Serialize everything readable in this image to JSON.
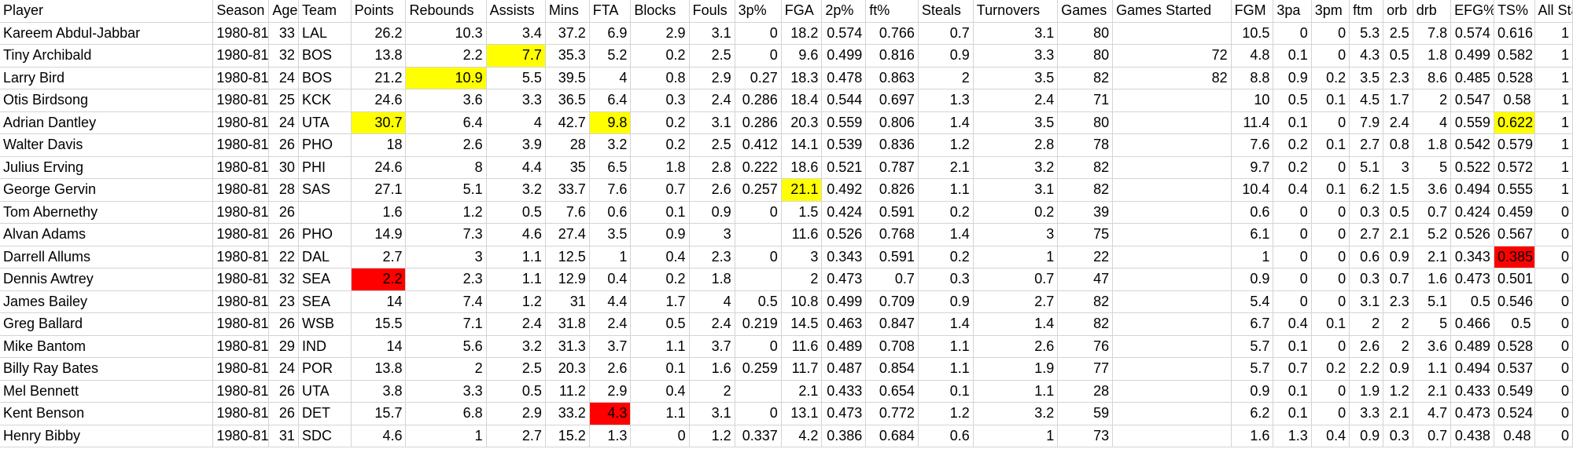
{
  "sheet": {
    "columns": [
      "Player",
      "Season",
      "Age",
      "Team",
      "Points",
      "Rebounds",
      "Assists",
      "Mins",
      "FTA",
      "Blocks",
      "Fouls",
      "3p%",
      "FGA",
      "2p%",
      "ft%",
      "Steals",
      "Turnovers",
      "Games",
      "Games Started",
      "FGM",
      "3pa",
      "3pm",
      "ftm",
      "orb",
      "drb",
      "EFG%",
      "TS%",
      "All Star"
    ],
    "text_columns": [
      0,
      1,
      3
    ],
    "highlight_colors": {
      "yellow": "#ffff00",
      "red": "#ff0000"
    },
    "rows": [
      {
        "cells": [
          "Kareem Abdul-Jabbar",
          "1980-81",
          "33",
          "LAL",
          "26.2",
          "10.3",
          "3.4",
          "37.2",
          "6.9",
          "2.9",
          "3.1",
          "0",
          "18.2",
          "0.574",
          "0.766",
          "0.7",
          "3.1",
          "80",
          "",
          "10.5",
          "0",
          "0",
          "5.3",
          "2.5",
          "7.8",
          "0.574",
          "0.616",
          "1"
        ],
        "highlights": {}
      },
      {
        "cells": [
          "Tiny Archibald",
          "1980-81",
          "32",
          "BOS",
          "13.8",
          "2.2",
          "7.7",
          "35.3",
          "5.2",
          "0.2",
          "2.5",
          "0",
          "9.6",
          "0.499",
          "0.816",
          "0.9",
          "3.3",
          "80",
          "72",
          "4.8",
          "0.1",
          "0",
          "4.3",
          "0.5",
          "1.8",
          "0.499",
          "0.582",
          "1"
        ],
        "highlights": {
          "6": "yellow"
        }
      },
      {
        "cells": [
          "Larry Bird",
          "1980-81",
          "24",
          "BOS",
          "21.2",
          "10.9",
          "5.5",
          "39.5",
          "4",
          "0.8",
          "2.9",
          "0.27",
          "18.3",
          "0.478",
          "0.863",
          "2",
          "3.5",
          "82",
          "82",
          "8.8",
          "0.9",
          "0.2",
          "3.5",
          "2.3",
          "8.6",
          "0.485",
          "0.528",
          "1"
        ],
        "highlights": {
          "5": "yellow"
        }
      },
      {
        "cells": [
          "Otis Birdsong",
          "1980-81",
          "25",
          "KCK",
          "24.6",
          "3.6",
          "3.3",
          "36.5",
          "6.4",
          "0.3",
          "2.4",
          "0.286",
          "18.4",
          "0.544",
          "0.697",
          "1.3",
          "2.4",
          "71",
          "",
          "10",
          "0.5",
          "0.1",
          "4.5",
          "1.7",
          "2",
          "0.547",
          "0.58",
          "1"
        ],
        "highlights": {}
      },
      {
        "cells": [
          "Adrian Dantley",
          "1980-81",
          "24",
          "UTA",
          "30.7",
          "6.4",
          "4",
          "42.7",
          "9.8",
          "0.2",
          "3.1",
          "0.286",
          "20.3",
          "0.559",
          "0.806",
          "1.4",
          "3.5",
          "80",
          "",
          "11.4",
          "0.1",
          "0",
          "7.9",
          "2.4",
          "4",
          "0.559",
          "0.622",
          "1"
        ],
        "highlights": {
          "4": "yellow",
          "8": "yellow",
          "26": "yellow"
        }
      },
      {
        "cells": [
          "Walter Davis",
          "1980-81",
          "26",
          "PHO",
          "18",
          "2.6",
          "3.9",
          "28",
          "3.2",
          "0.2",
          "2.5",
          "0.412",
          "14.1",
          "0.539",
          "0.836",
          "1.2",
          "2.8",
          "78",
          "",
          "7.6",
          "0.2",
          "0.1",
          "2.7",
          "0.8",
          "1.8",
          "0.542",
          "0.579",
          "1"
        ],
        "highlights": {}
      },
      {
        "cells": [
          "Julius Erving",
          "1980-81",
          "30",
          "PHI",
          "24.6",
          "8",
          "4.4",
          "35",
          "6.5",
          "1.8",
          "2.8",
          "0.222",
          "18.6",
          "0.521",
          "0.787",
          "2.1",
          "3.2",
          "82",
          "",
          "9.7",
          "0.2",
          "0",
          "5.1",
          "3",
          "5",
          "0.522",
          "0.572",
          "1"
        ],
        "highlights": {}
      },
      {
        "cells": [
          "George Gervin",
          "1980-81",
          "28",
          "SAS",
          "27.1",
          "5.1",
          "3.2",
          "33.7",
          "7.6",
          "0.7",
          "2.6",
          "0.257",
          "21.1",
          "0.492",
          "0.826",
          "1.1",
          "3.1",
          "82",
          "",
          "10.4",
          "0.4",
          "0.1",
          "6.2",
          "1.5",
          "3.6",
          "0.494",
          "0.555",
          "1"
        ],
        "highlights": {
          "12": "yellow"
        }
      },
      {
        "cells": [
          "Tom Abernethy",
          "1980-81",
          "26",
          "",
          "1.6",
          "1.2",
          "0.5",
          "7.6",
          "0.6",
          "0.1",
          "0.9",
          "0",
          "1.5",
          "0.424",
          "0.591",
          "0.2",
          "0.2",
          "39",
          "",
          "0.6",
          "0",
          "0",
          "0.3",
          "0.5",
          "0.7",
          "0.424",
          "0.459",
          "0"
        ],
        "highlights": {}
      },
      {
        "cells": [
          "Alvan Adams",
          "1980-81",
          "26",
          "PHO",
          "14.9",
          "7.3",
          "4.6",
          "27.4",
          "3.5",
          "0.9",
          "3",
          "",
          "11.6",
          "0.526",
          "0.768",
          "1.4",
          "3",
          "75",
          "",
          "6.1",
          "0",
          "0",
          "2.7",
          "2.1",
          "5.2",
          "0.526",
          "0.567",
          "0"
        ],
        "highlights": {}
      },
      {
        "cells": [
          "Darrell Allums",
          "1980-81",
          "22",
          "DAL",
          "2.7",
          "3",
          "1.1",
          "12.5",
          "1",
          "0.4",
          "2.3",
          "0",
          "3",
          "0.343",
          "0.591",
          "0.2",
          "1",
          "22",
          "",
          "1",
          "0",
          "0",
          "0.6",
          "0.9",
          "2.1",
          "0.343",
          "0.385",
          "0"
        ],
        "highlights": {
          "26": "red"
        }
      },
      {
        "cells": [
          "Dennis Awtrey",
          "1980-81",
          "32",
          "SEA",
          "2.2",
          "2.3",
          "1.1",
          "12.9",
          "0.4",
          "0.2",
          "1.8",
          "",
          "2",
          "0.473",
          "0.7",
          "0.3",
          "0.7",
          "47",
          "",
          "0.9",
          "0",
          "0",
          "0.3",
          "0.7",
          "1.6",
          "0.473",
          "0.501",
          "0"
        ],
        "highlights": {
          "4": "red"
        }
      },
      {
        "cells": [
          "James Bailey",
          "1980-81",
          "23",
          "SEA",
          "14",
          "7.4",
          "1.2",
          "31",
          "4.4",
          "1.7",
          "4",
          "0.5",
          "10.8",
          "0.499",
          "0.709",
          "0.9",
          "2.7",
          "82",
          "",
          "5.4",
          "0",
          "0",
          "3.1",
          "2.3",
          "5.1",
          "0.5",
          "0.546",
          "0"
        ],
        "highlights": {}
      },
      {
        "cells": [
          "Greg Ballard",
          "1980-81",
          "26",
          "WSB",
          "15.5",
          "7.1",
          "2.4",
          "31.8",
          "2.4",
          "0.5",
          "2.4",
          "0.219",
          "14.5",
          "0.463",
          "0.847",
          "1.4",
          "1.4",
          "82",
          "",
          "6.7",
          "0.4",
          "0.1",
          "2",
          "2",
          "5",
          "0.466",
          "0.5",
          "0"
        ],
        "highlights": {}
      },
      {
        "cells": [
          "Mike Bantom",
          "1980-81",
          "29",
          "IND",
          "14",
          "5.6",
          "3.2",
          "31.3",
          "3.7",
          "1.1",
          "3.7",
          "0",
          "11.6",
          "0.489",
          "0.708",
          "1.1",
          "2.6",
          "76",
          "",
          "5.7",
          "0.1",
          "0",
          "2.6",
          "2",
          "3.6",
          "0.489",
          "0.528",
          "0"
        ],
        "highlights": {}
      },
      {
        "cells": [
          "Billy Ray Bates",
          "1980-81",
          "24",
          "POR",
          "13.8",
          "2",
          "2.5",
          "20.3",
          "2.6",
          "0.1",
          "1.6",
          "0.259",
          "11.7",
          "0.487",
          "0.854",
          "1.1",
          "1.9",
          "77",
          "",
          "5.7",
          "0.7",
          "0.2",
          "2.2",
          "0.9",
          "1.1",
          "0.494",
          "0.537",
          "0"
        ],
        "highlights": {}
      },
      {
        "cells": [
          "Mel Bennett",
          "1980-81",
          "26",
          "UTA",
          "3.8",
          "3.3",
          "0.5",
          "11.2",
          "2.9",
          "0.4",
          "2",
          "",
          "2.1",
          "0.433",
          "0.654",
          "0.1",
          "1.1",
          "28",
          "",
          "0.9",
          "0.1",
          "0",
          "1.9",
          "1.2",
          "2.1",
          "0.433",
          "0.549",
          "0"
        ],
        "highlights": {}
      },
      {
        "cells": [
          "Kent Benson",
          "1980-81",
          "26",
          "DET",
          "15.7",
          "6.8",
          "2.9",
          "33.2",
          "4.3",
          "1.1",
          "3.1",
          "0",
          "13.1",
          "0.473",
          "0.772",
          "1.2",
          "3.2",
          "59",
          "",
          "6.2",
          "0.1",
          "0",
          "3.3",
          "2.1",
          "4.7",
          "0.473",
          "0.524",
          "0"
        ],
        "highlights": {
          "8": "red"
        }
      },
      {
        "cells": [
          "Henry Bibby",
          "1980-81",
          "31",
          "SDC",
          "4.6",
          "1",
          "2.7",
          "15.2",
          "1.3",
          "0",
          "1.2",
          "0.337",
          "4.2",
          "0.386",
          "0.684",
          "0.6",
          "1",
          "73",
          "",
          "1.6",
          "1.3",
          "0.4",
          "0.9",
          "0.3",
          "0.7",
          "0.438",
          "0.48",
          "0"
        ],
        "highlights": {}
      }
    ]
  }
}
